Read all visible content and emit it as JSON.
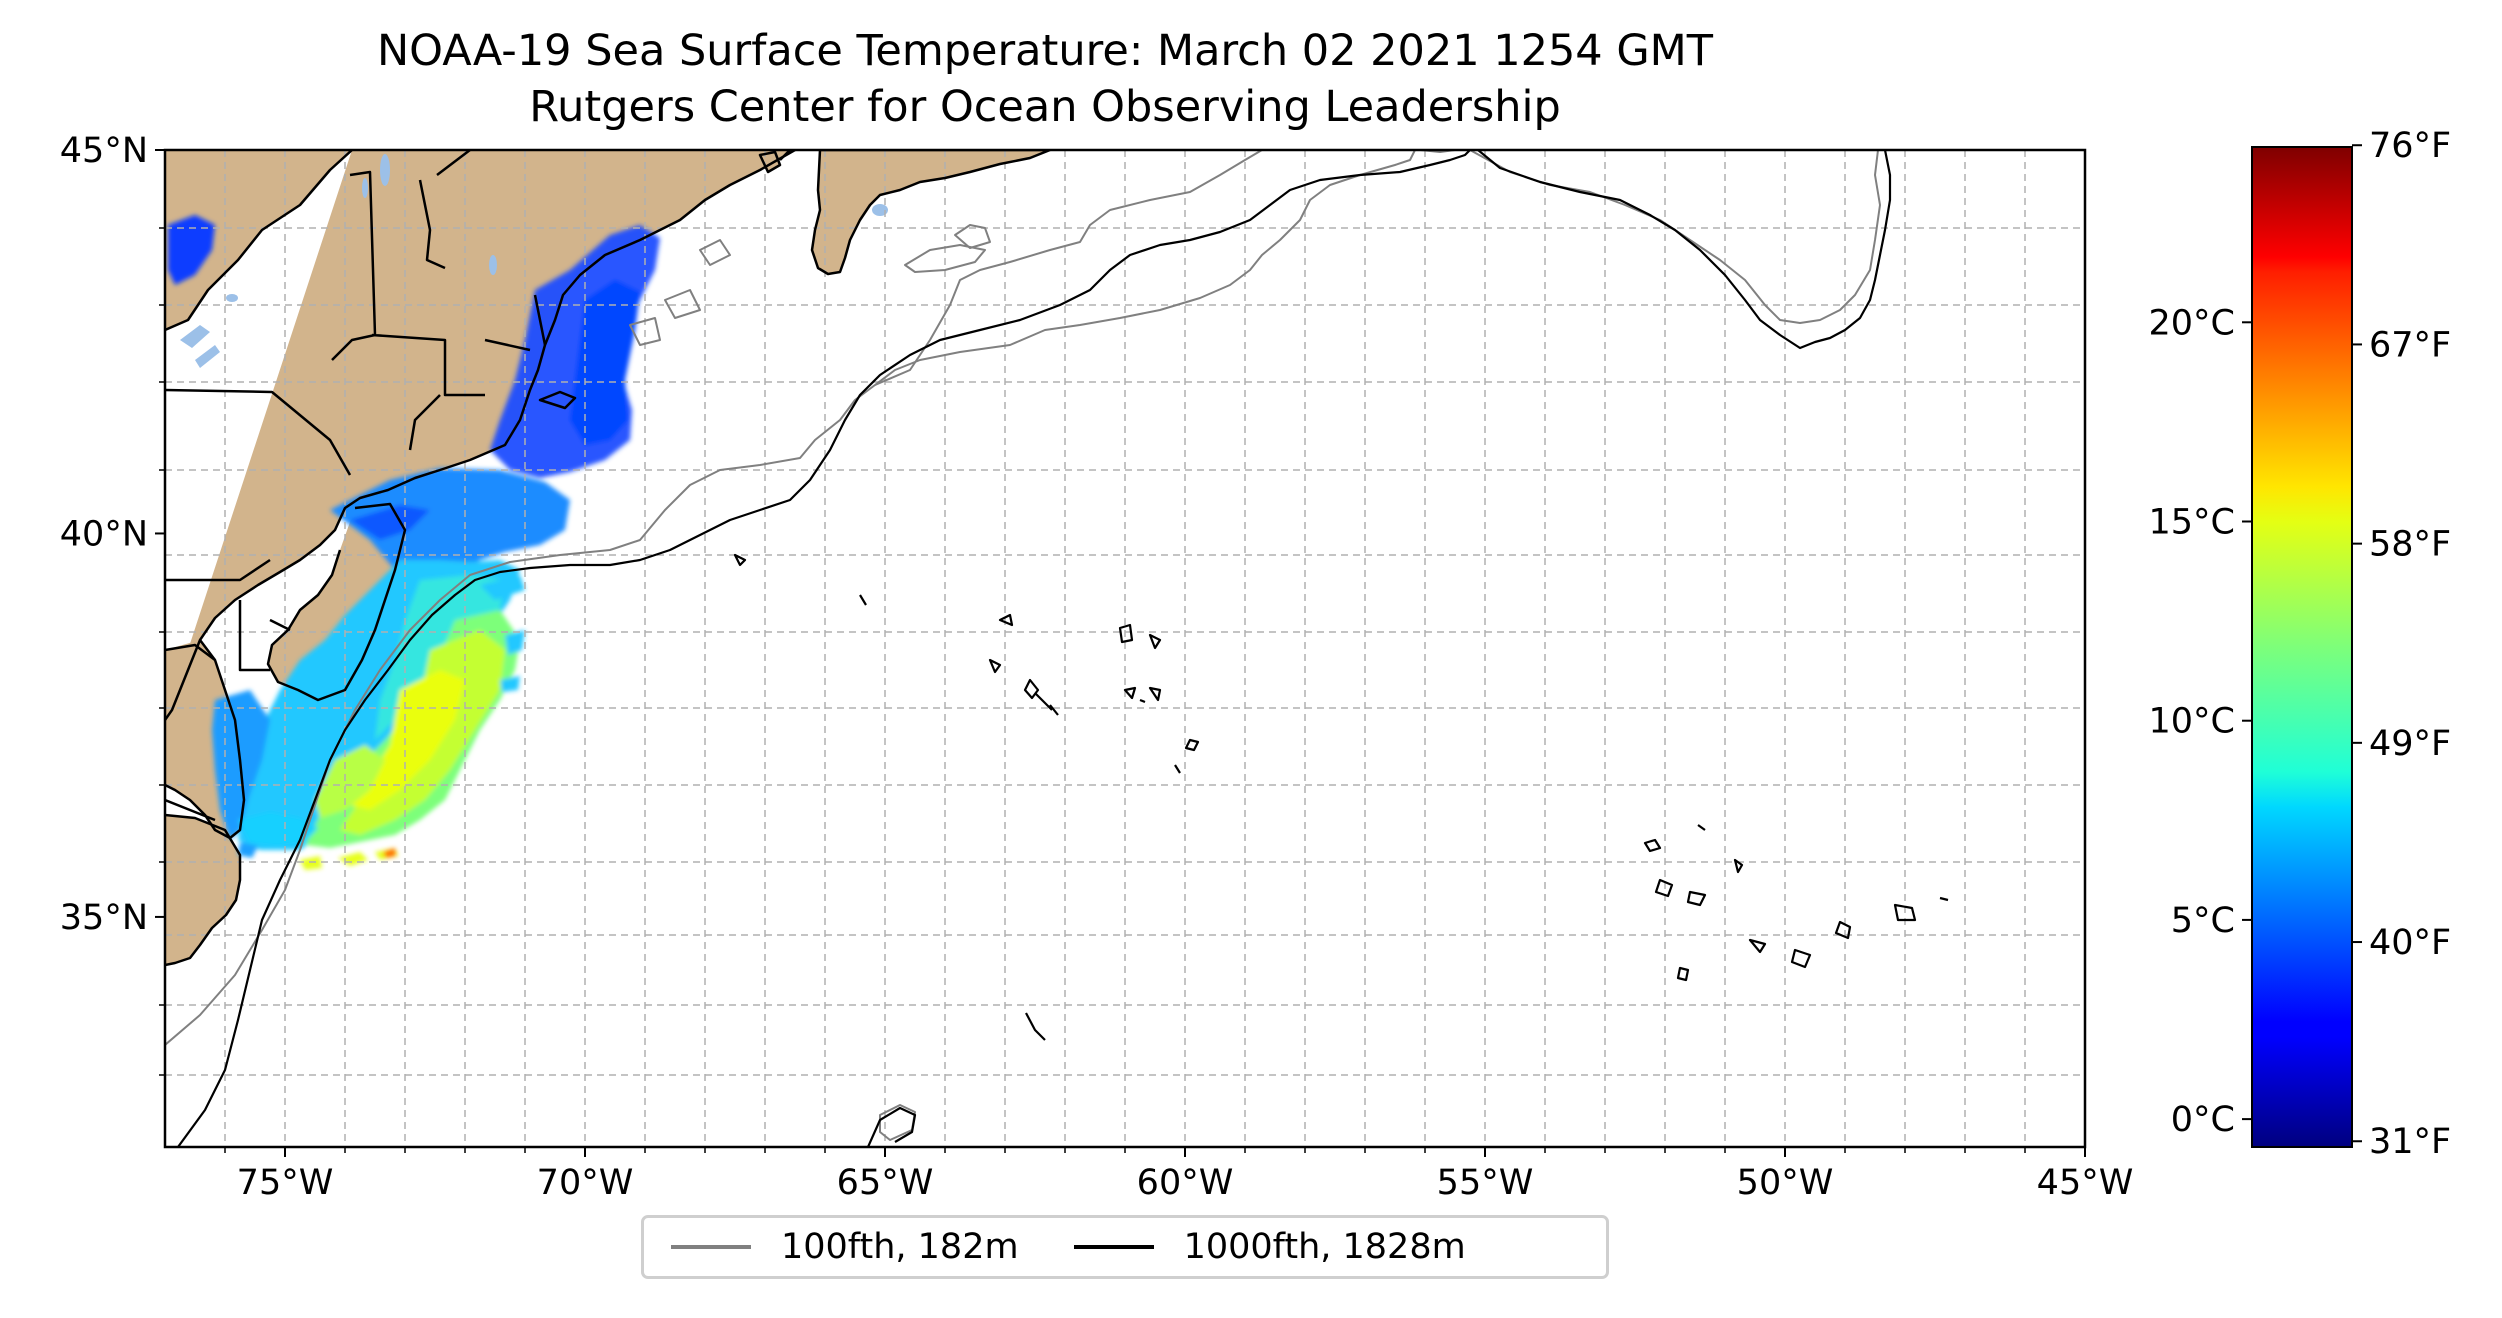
{
  "title": "NOAA-19 Sea Surface Temperature: March 02 2021 1254 GMT",
  "subtitle": "Rutgers Center for Ocean Observing Leadership",
  "map": {
    "lon_range": [
      -77,
      -45
    ],
    "lat_range": [
      32,
      45
    ],
    "lon_ticks": [
      {
        "value": -75,
        "label": "75°W"
      },
      {
        "value": -70,
        "label": "70°W"
      },
      {
        "value": -65,
        "label": "65°W"
      },
      {
        "value": -60,
        "label": "60°W"
      },
      {
        "value": -55,
        "label": "55°W"
      },
      {
        "value": -50,
        "label": "50°W"
      },
      {
        "value": -45,
        "label": "45°W"
      }
    ],
    "lat_ticks": [
      {
        "value": 35,
        "label": "35°N"
      },
      {
        "value": 40,
        "label": "40°N"
      },
      {
        "value": 45,
        "label": "45°N"
      }
    ],
    "gridlines": "dashed, 1° spacing",
    "colors": {
      "land": "#d2b48c",
      "lakes": "#9cc0e8",
      "isobath_100fth": "#808080",
      "isobath_1000fth": "#000000"
    }
  },
  "legend": {
    "placement": "bottom-center",
    "items": [
      {
        "label": "100fth, 182m",
        "color": "#808080"
      },
      {
        "label": "1000fth, 1828m",
        "color": "#000000"
      }
    ]
  },
  "colorbar": {
    "colormap": "jet",
    "celsius_range": [
      -0.7,
      24.4
    ],
    "celsius_ticks": [
      {
        "value": 0,
        "label": "0°C"
      },
      {
        "value": 5,
        "label": "5°C"
      },
      {
        "value": 10,
        "label": "10°C"
      },
      {
        "value": 15,
        "label": "15°C"
      },
      {
        "value": 20,
        "label": "20°C"
      }
    ],
    "fahrenheit_ticks": [
      {
        "value": 31,
        "label": "31°F"
      },
      {
        "value": 40,
        "label": "40°F"
      },
      {
        "value": 49,
        "label": "49°F"
      },
      {
        "value": 58,
        "label": "58°F"
      },
      {
        "value": 67,
        "label": "67°F"
      },
      {
        "value": 76,
        "label": "76°F"
      }
    ]
  }
}
